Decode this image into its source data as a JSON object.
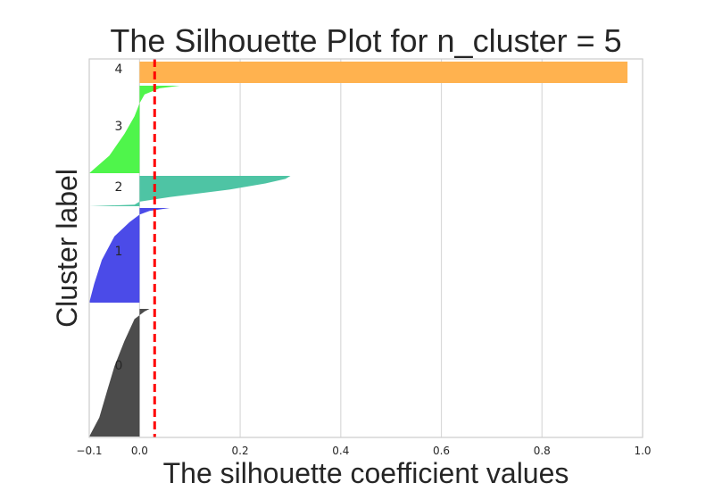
{
  "chart_data": {
    "type": "area",
    "title": "The Silhouette Plot for n_cluster = 5",
    "xlabel": "The silhouette coefficient values",
    "ylabel": "Cluster label",
    "xlim": [
      -0.1,
      1.0
    ],
    "xticks": [
      -0.1,
      0.0,
      0.2,
      0.4,
      0.6,
      0.8,
      1.0
    ],
    "xtick_labels": [
      "−0.1",
      "0.0",
      "0.2",
      "0.4",
      "0.6",
      "0.8",
      "1.0"
    ],
    "grid": true,
    "average_silhouette_score": 0.03,
    "clusters": [
      {
        "label": "0",
        "color": "#4c4c4c",
        "profile": [
          [
            0.0,
            -0.1
          ],
          [
            0.15,
            -0.08
          ],
          [
            0.35,
            -0.065
          ],
          [
            0.55,
            -0.05
          ],
          [
            0.75,
            -0.03
          ],
          [
            0.92,
            -0.01
          ],
          [
            0.98,
            0.01
          ],
          [
            1.0,
            0.02
          ]
        ]
      },
      {
        "label": "1",
        "color": "#4b4be8",
        "profile": [
          [
            0.0,
            -0.1
          ],
          [
            0.2,
            -0.09
          ],
          [
            0.45,
            -0.075
          ],
          [
            0.7,
            -0.05
          ],
          [
            0.85,
            -0.02
          ],
          [
            0.93,
            0.0
          ],
          [
            0.97,
            0.02
          ],
          [
            1.0,
            0.06
          ]
        ]
      },
      {
        "label": "2",
        "color": "#4ec4a4",
        "profile": [
          [
            0.0,
            -0.1
          ],
          [
            0.05,
            -0.01
          ],
          [
            0.15,
            0.0
          ],
          [
            0.3,
            0.06
          ],
          [
            0.55,
            0.18
          ],
          [
            0.75,
            0.25
          ],
          [
            0.9,
            0.29
          ],
          [
            1.0,
            0.3
          ]
        ]
      },
      {
        "label": "3",
        "color": "#4ff54b",
        "profile": [
          [
            0.0,
            -0.1
          ],
          [
            0.2,
            -0.06
          ],
          [
            0.45,
            -0.03
          ],
          [
            0.65,
            -0.01
          ],
          [
            0.8,
            0.0
          ],
          [
            0.9,
            0.01
          ],
          [
            0.97,
            0.04
          ],
          [
            1.0,
            0.08
          ]
        ]
      },
      {
        "label": "4",
        "color": "#ffb24f",
        "profile": [
          [
            0.0,
            0.97
          ],
          [
            1.0,
            0.97
          ]
        ]
      }
    ]
  }
}
